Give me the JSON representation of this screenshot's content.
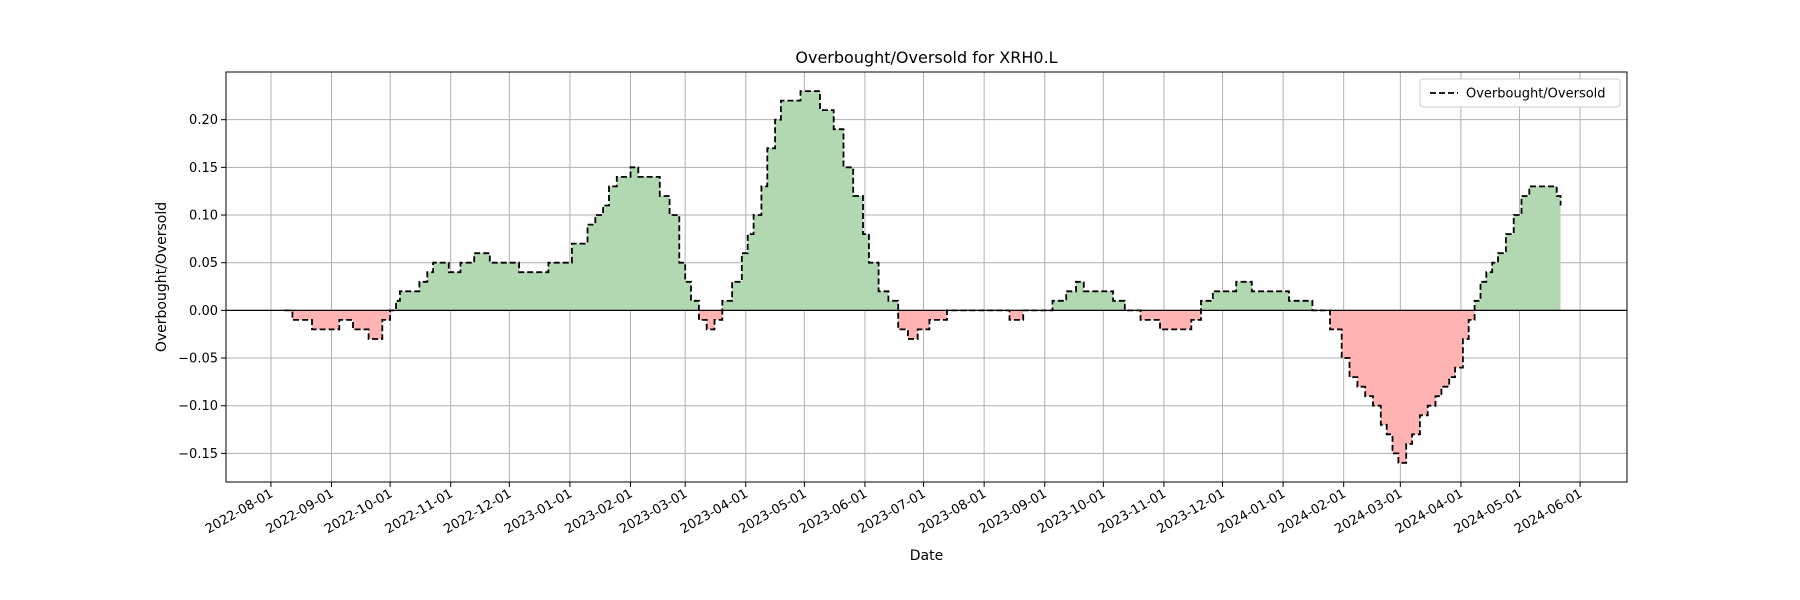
{
  "chart_data": {
    "type": "area",
    "title": "Overbought/Oversold for XRH0.L",
    "xlabel": "Date",
    "ylabel": "Overbought/Oversold",
    "legend": {
      "label": "Overbought/Oversold",
      "placement": "top-right"
    },
    "grid": true,
    "xlim": [
      "2022-07-09",
      "2024-06-25"
    ],
    "ylim": [
      -0.18,
      0.25
    ],
    "x_ticks": [
      "2022-08-01",
      "2022-09-01",
      "2022-10-01",
      "2022-11-01",
      "2022-12-01",
      "2023-01-01",
      "2023-02-01",
      "2023-03-01",
      "2023-04-01",
      "2023-05-01",
      "2023-06-01",
      "2023-07-01",
      "2023-08-01",
      "2023-09-01",
      "2023-10-01",
      "2023-11-01",
      "2023-12-01",
      "2024-01-01",
      "2024-02-01",
      "2024-03-01",
      "2024-04-01",
      "2024-05-01",
      "2024-06-01"
    ],
    "y_ticks": [
      -0.15,
      -0.1,
      -0.05,
      0.0,
      0.05,
      0.1,
      0.15,
      0.2
    ],
    "y_tick_labels": [
      "−0.15",
      "−0.10",
      "−0.05",
      "0.00",
      "0.05",
      "0.10",
      "0.15",
      "0.20"
    ],
    "colors": {
      "line": "#000000",
      "positive_fill": "#b2d8b2",
      "negative_fill": "#ffb3b3",
      "zero_line": "#000000",
      "grid": "#b0b0b0"
    },
    "series": [
      {
        "name": "Overbought/Oversold",
        "x": [
          "2022-08-08",
          "2022-08-12",
          "2022-08-15",
          "2022-08-22",
          "2022-08-25",
          "2022-09-05",
          "2022-09-12",
          "2022-09-15",
          "2022-09-20",
          "2022-09-27",
          "2022-10-01",
          "2022-10-04",
          "2022-10-06",
          "2022-10-09",
          "2022-10-16",
          "2022-10-20",
          "2022-10-23",
          "2022-10-26",
          "2022-10-31",
          "2022-11-06",
          "2022-11-09",
          "2022-11-13",
          "2022-11-16",
          "2022-11-21",
          "2022-11-26",
          "2022-12-01",
          "2022-12-06",
          "2022-12-11",
          "2022-12-21",
          "2022-12-26",
          "2023-01-02",
          "2023-01-10",
          "2023-01-14",
          "2023-01-18",
          "2023-01-21",
          "2023-01-25",
          "2023-01-28",
          "2023-02-01",
          "2023-02-05",
          "2023-02-11",
          "2023-02-16",
          "2023-02-21",
          "2023-02-26",
          "2023-03-01",
          "2023-03-04",
          "2023-03-08",
          "2023-03-12",
          "2023-03-16",
          "2023-03-20",
          "2023-03-25",
          "2023-03-30",
          "2023-04-02",
          "2023-04-05",
          "2023-04-09",
          "2023-04-12",
          "2023-04-16",
          "2023-04-19",
          "2023-04-22",
          "2023-04-25",
          "2023-04-29",
          "2023-05-09",
          "2023-05-16",
          "2023-05-21",
          "2023-05-26",
          "2023-05-31",
          "2023-06-03",
          "2023-06-08",
          "2023-06-13",
          "2023-06-18",
          "2023-06-23",
          "2023-06-28",
          "2023-07-01",
          "2023-07-04",
          "2023-07-13",
          "2023-07-24",
          "2023-07-30",
          "2023-08-10",
          "2023-08-14",
          "2023-08-17",
          "2023-08-21",
          "2023-08-30",
          "2023-09-05",
          "2023-09-12",
          "2023-09-17",
          "2023-09-21",
          "2023-09-25",
          "2023-10-06",
          "2023-10-12",
          "2023-10-20",
          "2023-10-30",
          "2023-11-02",
          "2023-11-09",
          "2023-11-15",
          "2023-11-20",
          "2023-11-26",
          "2023-12-01",
          "2023-12-08",
          "2023-12-12",
          "2023-12-16",
          "2023-12-29",
          "2024-01-04",
          "2024-01-16",
          "2024-01-25",
          "2024-01-31",
          "2024-02-04",
          "2024-02-08",
          "2024-02-12",
          "2024-02-16",
          "2024-02-20",
          "2024-02-23",
          "2024-02-26",
          "2024-02-29",
          "2024-03-04",
          "2024-03-07",
          "2024-03-11",
          "2024-03-15",
          "2024-03-19",
          "2024-03-22",
          "2024-03-26",
          "2024-03-29",
          "2024-04-02",
          "2024-04-05",
          "2024-04-08",
          "2024-04-11",
          "2024-04-14",
          "2024-04-17",
          "2024-04-20",
          "2024-04-24",
          "2024-04-28",
          "2024-05-02",
          "2024-05-06",
          "2024-05-12",
          "2024-05-20",
          "2024-05-22"
        ],
        "y": [
          0.0,
          -0.01,
          -0.01,
          -0.02,
          -0.02,
          -0.01,
          -0.02,
          -0.02,
          -0.03,
          -0.01,
          0.0,
          0.01,
          0.02,
          0.02,
          0.03,
          0.04,
          0.05,
          0.05,
          0.04,
          0.05,
          0.05,
          0.06,
          0.06,
          0.05,
          0.05,
          0.05,
          0.04,
          0.04,
          0.05,
          0.05,
          0.07,
          0.09,
          0.1,
          0.11,
          0.13,
          0.14,
          0.14,
          0.15,
          0.14,
          0.14,
          0.12,
          0.1,
          0.05,
          0.03,
          0.01,
          -0.01,
          -0.02,
          -0.01,
          0.01,
          0.03,
          0.06,
          0.08,
          0.1,
          0.13,
          0.17,
          0.2,
          0.22,
          0.22,
          0.22,
          0.23,
          0.21,
          0.19,
          0.15,
          0.12,
          0.08,
          0.05,
          0.02,
          0.01,
          -0.02,
          -0.03,
          -0.02,
          -0.02,
          -0.01,
          0.0,
          0.0,
          0.0,
          0.0,
          -0.01,
          -0.01,
          0.0,
          0.0,
          0.01,
          0.02,
          0.03,
          0.02,
          0.02,
          0.01,
          0.0,
          -0.01,
          -0.02,
          -0.02,
          -0.02,
          -0.01,
          0.01,
          0.02,
          0.02,
          0.03,
          0.03,
          0.02,
          0.02,
          0.01,
          0.0,
          -0.02,
          -0.05,
          -0.07,
          -0.08,
          -0.09,
          -0.1,
          -0.12,
          -0.13,
          -0.15,
          -0.16,
          -0.14,
          -0.13,
          -0.11,
          -0.1,
          -0.09,
          -0.08,
          -0.07,
          -0.06,
          -0.03,
          -0.01,
          0.01,
          0.03,
          0.04,
          0.05,
          0.06,
          0.08,
          0.1,
          0.12,
          0.13,
          0.13,
          0.12,
          0.11
        ]
      }
    ]
  }
}
